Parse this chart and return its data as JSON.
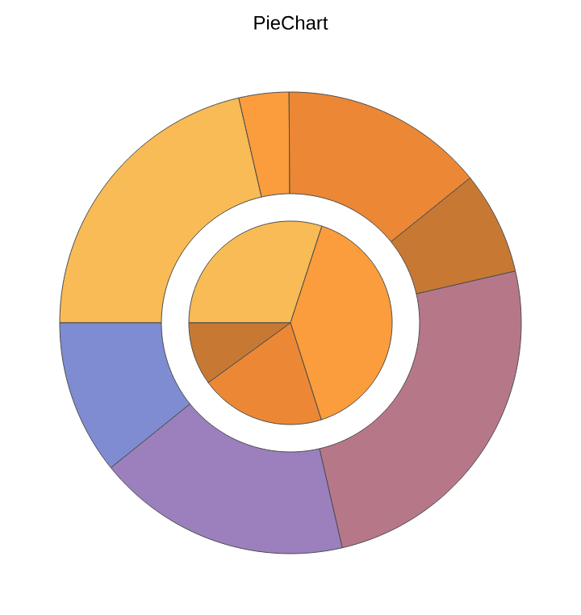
{
  "chart_data": [
    {
      "type": "pie",
      "title": "PieChart",
      "categories": [
        null,
        null,
        null,
        null
      ],
      "values": [
        30.0,
        40.1,
        19.9,
        10.0
      ],
      "colors": [
        "#f8bb55",
        "#fb9d3c",
        "#ec8835",
        "#c77934"
      ]
    },
    {
      "type": "donut",
      "categories": [
        null,
        null,
        null,
        null,
        null,
        null,
        null
      ],
      "values": [
        21.4,
        3.5,
        14.3,
        7.2,
        25.0,
        17.8,
        10.8
      ],
      "colors": [
        "#f8bb55",
        "#fb9d3c",
        "#eb8735",
        "#c77934",
        "#b67889",
        "#9b80bd",
        "#7f8cd2"
      ]
    }
  ]
}
